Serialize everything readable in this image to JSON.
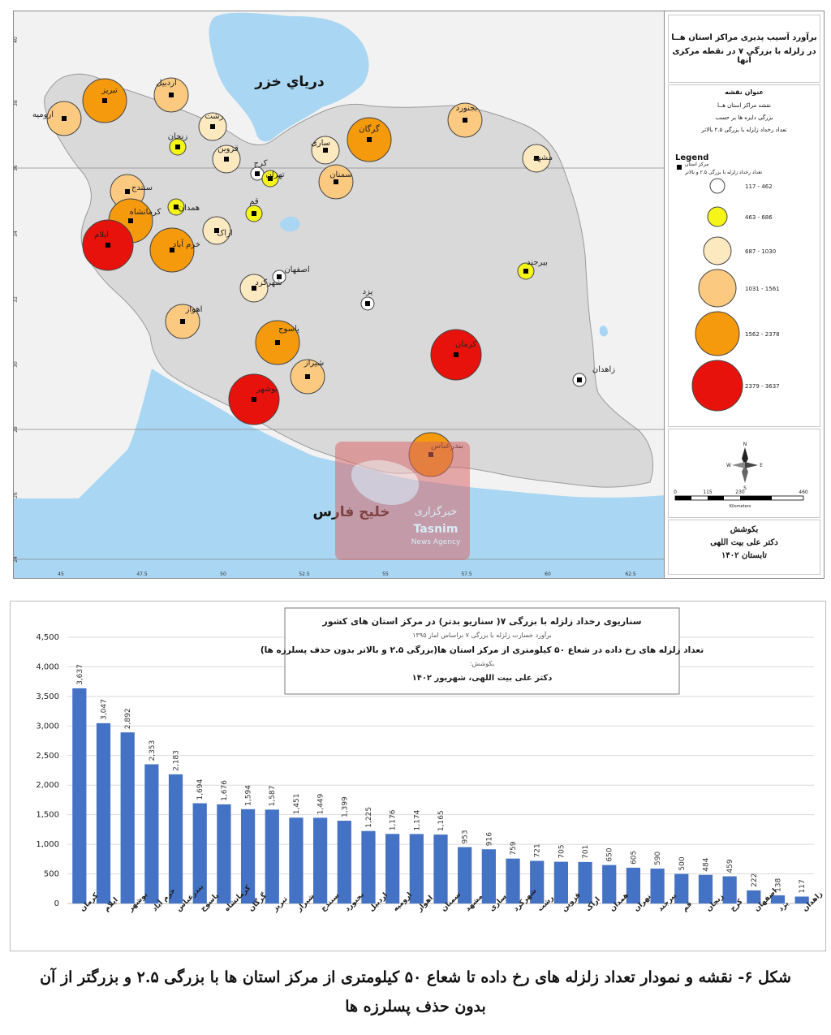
{
  "map": {
    "sea_north": "درياي خزر",
    "sea_south": "خليج فارس",
    "lat_ticks": [
      "40",
      "38",
      "36",
      "34",
      "32",
      "30",
      "28",
      "26",
      "24"
    ],
    "lon_ticks": [
      "45",
      "47.5",
      "50",
      "52.5",
      "55",
      "57.5",
      "60",
      "62.5"
    ],
    "watermark": {
      "line1": "خبرگزاری",
      "line2": "Tasnim",
      "line3": "News Agency"
    },
    "classes": [
      {
        "range": "117 - 462",
        "color": "#ffffff"
      },
      {
        "range": "463 - 686",
        "color": "#f5f51a"
      },
      {
        "range": "687 - 1030",
        "color": "#fde9c0"
      },
      {
        "range": "1031 - 1561",
        "color": "#fbc980"
      },
      {
        "range": "1562 - 2378",
        "color": "#f59a0c"
      },
      {
        "range": "2379 - 3637",
        "color": "#e8120c"
      }
    ],
    "cities": [
      {
        "name": "تبریز",
        "cls": 4
      },
      {
        "name": "ارومیه",
        "cls": 3
      },
      {
        "name": "اردبیل",
        "cls": 3
      },
      {
        "name": "زنجان",
        "cls": 1
      },
      {
        "name": "رشت",
        "cls": 2
      },
      {
        "name": "قزوین",
        "cls": 2
      },
      {
        "name": "کرج",
        "cls": 0
      },
      {
        "name": "تهران",
        "cls": 1
      },
      {
        "name": "قم",
        "cls": 1
      },
      {
        "name": "ساری",
        "cls": 2
      },
      {
        "name": "گرگان",
        "cls": 4
      },
      {
        "name": "سمنان",
        "cls": 3
      },
      {
        "name": "بجنورد",
        "cls": 3
      },
      {
        "name": "مشهد",
        "cls": 2
      },
      {
        "name": "سنندج",
        "cls": 3
      },
      {
        "name": "همدان",
        "cls": 1
      },
      {
        "name": "کرمانشاه",
        "cls": 4
      },
      {
        "name": "ایلام",
        "cls": 5
      },
      {
        "name": "خرم آباد",
        "cls": 4
      },
      {
        "name": "اراک",
        "cls": 2
      },
      {
        "name": "اصفهان",
        "cls": 0
      },
      {
        "name": "شهرکرد",
        "cls": 2
      },
      {
        "name": "یزد",
        "cls": 0
      },
      {
        "name": "بیرجند",
        "cls": 1
      },
      {
        "name": "اهواز",
        "cls": 3
      },
      {
        "name": "یاسوج",
        "cls": 4
      },
      {
        "name": "شیراز",
        "cls": 3
      },
      {
        "name": "بوشهر",
        "cls": 5
      },
      {
        "name": "کرمان",
        "cls": 5
      },
      {
        "name": "زاهدان",
        "cls": 0
      },
      {
        "name": "بندرعباس",
        "cls": 4
      }
    ]
  },
  "legend": {
    "title_line1": "برآورد آسیب پذیری مراکز استان هــا",
    "title_line2": "در زلزله با بزرگی ۷ در نقطه مرکزی آنها",
    "info_heading": "عنوان نقشه",
    "info_line1": "نقشه مراکز استان هــا",
    "info_line2": "بزرگی دایره ها بر حسب",
    "info_line3": "تعداد رخداد زلزله با بزرگی ۲.۵ بالاتر",
    "legend_word": "Legend",
    "marker_label": "مرکز استان",
    "size_label": "تعداد رخداد زلزله با بزرگی ۲.۵ و بالاتر",
    "compass": {
      "n": "N",
      "s": "S",
      "e": "E",
      "w": "W"
    },
    "scale_ticks": [
      "0",
      "115",
      "230",
      "460"
    ],
    "scale_unit": "Kilometers",
    "credit_heading": "بکوشش",
    "credit_name": "دکتر علی بیت اللهی",
    "credit_date": "تابستان ۱۴۰۲"
  },
  "chart_data": {
    "type": "bar",
    "title": "سناریوی رخداد زلزله با بزرگی ۷( سناریو بدتر) در مرکز استان های کشور",
    "subtitle": "برآورد خسارت زلزله با بزرگی ۷ براساس امار ۱۳۹۵",
    "heading": "تعداد زلزله های رخ داده در شعاع ۵۰ کیلومتری از مرکز استان ها(بزرگی ۲.۵ و بالاتر بدون حذف پسلرزه ها)",
    "credit_label": "بکوشش:",
    "credit": "دکتر علی بیت اللهی، شهریور ۱۴۰۲",
    "categories": [
      "کرمان",
      "ایلام",
      "بوشهر",
      "خرم آباد",
      "بندرعباس",
      "یاسوج",
      "کرمانشاه",
      "گرگان",
      "تبریز",
      "شیراز",
      "سنندج",
      "بجنورد",
      "اردبیل",
      "ارومیه",
      "اهواز",
      "سمنان",
      "مشهد",
      "ساری",
      "شهرکرد",
      "رشت",
      "قزوین",
      "اراک",
      "همدان",
      "تهران",
      "بیرجند",
      "قم",
      "زنجان",
      "کرج",
      "اصفهان",
      "یزد",
      "زاهدان"
    ],
    "values": [
      3637,
      3047,
      2892,
      2353,
      2183,
      1694,
      1676,
      1594,
      1587,
      1451,
      1449,
      1399,
      1225,
      1176,
      1174,
      1165,
      953,
      916,
      759,
      721,
      705,
      701,
      650,
      605,
      590,
      500,
      484,
      459,
      222,
      138,
      117
    ],
    "value_labels": [
      "3,637",
      "3,047",
      "2,892",
      "2,353",
      "2,183",
      "1,694",
      "1,676",
      "1,594",
      "1,587",
      "1,451",
      "1,449",
      "1,399",
      "1,225",
      "1,176",
      "1,174",
      "1,165",
      "953",
      "916",
      "759",
      "721",
      "705",
      "701",
      "650",
      "605",
      "590",
      "500",
      "484",
      "459",
      "222",
      "138",
      "117"
    ],
    "yticks": [
      "0",
      "500",
      "1,000",
      "1,500",
      "2,000",
      "2,500",
      "3,000",
      "3,500",
      "4,000",
      "4,500"
    ],
    "ylim": [
      0,
      4500
    ],
    "bar_color": "#4472c4"
  },
  "caption": {
    "line1": "شکل ۶- نقشه و نمودار تعداد زلزله های رخ داده تا شعاع ۵۰ کیلومتری از مرکز استان ها با بزرگی ۲.۵ و بزرگتر از آن",
    "line2": "بدون حذف پسلرزه ها"
  }
}
